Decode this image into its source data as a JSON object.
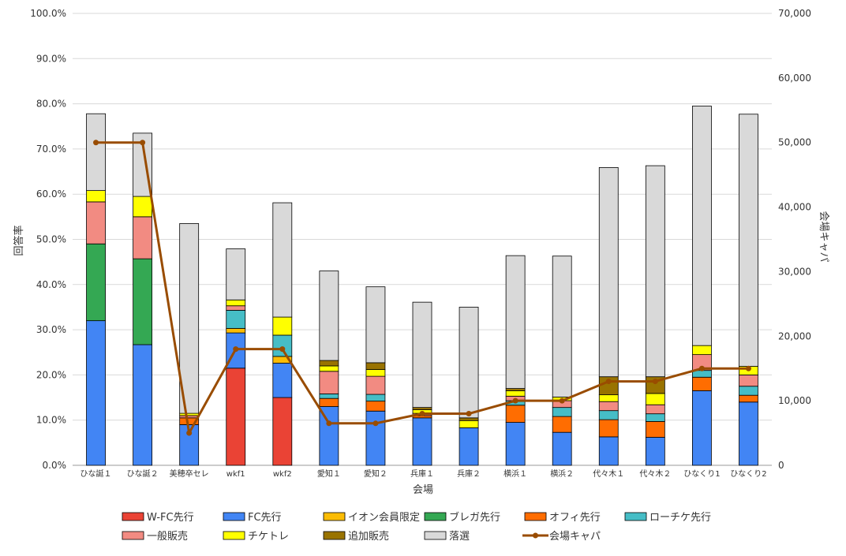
{
  "chart_data": {
    "type": "bar",
    "stacked": true,
    "title": "",
    "xlabel": "会場",
    "ylabel": "回答率",
    "y2label": "会場キャパ",
    "ylim": [
      0,
      100
    ],
    "y2lim": [
      0,
      70000
    ],
    "yticks": [
      "0.0%",
      "10.0%",
      "20.0%",
      "30.0%",
      "40.0%",
      "50.0%",
      "60.0%",
      "70.0%",
      "80.0%",
      "90.0%",
      "100.0%"
    ],
    "y2ticks": [
      "0",
      "10,000",
      "20,000",
      "30,000",
      "40,000",
      "50,000",
      "60,000",
      "70,000"
    ],
    "grid": true,
    "legend_position": "bottom",
    "categories": [
      "ひな誕１",
      "ひな誕２",
      "美穂卒セレ",
      "wkf1",
      "wkf2",
      "愛知１",
      "愛知２",
      "兵庫１",
      "兵庫２",
      "横浜１",
      "横浜２",
      "代々木１",
      "代々木２",
      "ひなくり1",
      "ひなくり2"
    ],
    "series": [
      {
        "name": "W-FC先行",
        "color": "#ea4335",
        "values": [
          0,
          0,
          0,
          21.5,
          15,
          0,
          0,
          0,
          0,
          0,
          0,
          0,
          0,
          0,
          0
        ]
      },
      {
        "name": "FC先行",
        "color": "#4285f4",
        "values": [
          32,
          26.7,
          9,
          7.8,
          7.6,
          13,
          12,
          10.5,
          8.3,
          9.5,
          7.3,
          6.3,
          6.2,
          16.5,
          14
        ]
      },
      {
        "name": "イオン会員限定",
        "color": "#fbbc04",
        "values": [
          0,
          0,
          0,
          1,
          1.5,
          0,
          0,
          0,
          0,
          0,
          0,
          0,
          0,
          0,
          0
        ]
      },
      {
        "name": "ブレガ先行",
        "color": "#34a853",
        "values": [
          17,
          19,
          0,
          0,
          0,
          0,
          0,
          0,
          0,
          0,
          0,
          0,
          0,
          0,
          0
        ]
      },
      {
        "name": "オフィ先行",
        "color": "#ff6d01",
        "values": [
          0,
          0,
          1.5,
          0,
          0,
          1.8,
          2.2,
          0.5,
          0,
          3.8,
          3.5,
          3.8,
          3.5,
          3,
          1.5
        ]
      },
      {
        "name": "ローチケ先行",
        "color": "#46bdc6",
        "values": [
          0,
          0,
          0,
          4,
          4.7,
          1,
          1.5,
          0,
          0,
          1,
          2,
          2,
          1.7,
          1.5,
          2
        ]
      },
      {
        "name": "一般販売",
        "color": "#f28b82",
        "values": [
          9.3,
          9.3,
          0.5,
          1,
          0,
          5,
          4,
          0.5,
          0,
          1,
          1.5,
          2,
          2,
          3.5,
          2.5
        ]
      },
      {
        "name": "チケトレ",
        "color": "#ffff00",
        "values": [
          2.5,
          4.5,
          0.5,
          1.3,
          4,
          1.2,
          1.5,
          0.8,
          1.6,
          1.2,
          0.8,
          1.5,
          2.5,
          2,
          1.9
        ]
      },
      {
        "name": "追加販売",
        "color": "#997300",
        "values": [
          0,
          0,
          0,
          0,
          0,
          1.2,
          1.5,
          0.5,
          0.6,
          0.5,
          0,
          4,
          3.7,
          0,
          0
        ]
      },
      {
        "name": "落選",
        "color": "#d9d9d9",
        "values": [
          17,
          14,
          42,
          11.3,
          25.3,
          19.8,
          16.8,
          23.3,
          24.5,
          29.4,
          31.2,
          46.3,
          46.7,
          53,
          55.8
        ]
      }
    ],
    "line_series": {
      "name": "会場キャパ",
      "color": "#994c00",
      "axis": "secondary",
      "values": [
        50000,
        50000,
        5000,
        18000,
        18000,
        6500,
        6500,
        8000,
        8000,
        10000,
        10000,
        13000,
        13000,
        15000,
        15000
      ]
    }
  }
}
